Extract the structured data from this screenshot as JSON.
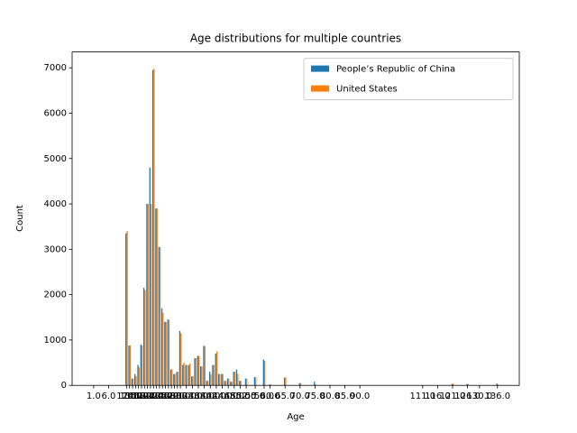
{
  "chart_data": {
    "type": "bar",
    "title": "Age distributions for multiple countries",
    "xlabel": "Age",
    "ylabel": "Count",
    "x": [
      12,
      13,
      14,
      15,
      16,
      17,
      18,
      19,
      20,
      21,
      22,
      23,
      24,
      25,
      26,
      27,
      28,
      29,
      30,
      31,
      32,
      33,
      34,
      35,
      36,
      37,
      38,
      39,
      40,
      41,
      42,
      43,
      44,
      45,
      46,
      47,
      48,
      49,
      50,
      52,
      55,
      58,
      60,
      65,
      70,
      75,
      80,
      90,
      111,
      116,
      121,
      126,
      130,
      136
    ],
    "series": [
      {
        "name": "People’s Republic of China",
        "color": "#1f77b4",
        "values": [
          3350,
          880,
          150,
          250,
          450,
          900,
          2150,
          4000,
          4800,
          6950,
          3900,
          3050,
          1700,
          1400,
          1450,
          350,
          250,
          300,
          1200,
          450,
          450,
          450,
          200,
          600,
          650,
          420,
          870,
          100,
          300,
          450,
          700,
          250,
          250,
          100,
          150,
          80,
          300,
          350,
          100,
          150,
          180,
          570,
          20,
          170,
          50,
          80,
          10,
          5,
          0,
          0,
          30,
          30,
          0,
          40
        ]
      },
      {
        "name": "United States",
        "color": "#ff7f0e",
        "values": [
          3400,
          880,
          150,
          200,
          400,
          880,
          2100,
          4000,
          4000,
          6980,
          3900,
          3050,
          1600,
          1400,
          1450,
          350,
          250,
          300,
          1150,
          500,
          450,
          480,
          200,
          600,
          650,
          420,
          870,
          100,
          250,
          450,
          750,
          250,
          250,
          100,
          150,
          80,
          300,
          250,
          100,
          150,
          180,
          540,
          20,
          180,
          50,
          20,
          10,
          5,
          0,
          0,
          40,
          30,
          0,
          20
        ]
      }
    ],
    "xlim": [
      -6.2,
      143.3
    ],
    "xticks": [
      {
        "value": 1,
        "label": "1.0"
      },
      {
        "value": 6,
        "label": "6.0"
      },
      {
        "value": 12,
        "label": "12.0"
      },
      {
        "value": 13,
        "label": "13.0"
      },
      {
        "value": 14,
        "label": "14.0"
      },
      {
        "value": 15,
        "label": "15.0"
      },
      {
        "value": 16,
        "label": "16.0"
      },
      {
        "value": 17,
        "label": "17.0"
      },
      {
        "value": 18,
        "label": "18.0"
      },
      {
        "value": 19,
        "label": "19.0"
      },
      {
        "value": 20,
        "label": "20.0"
      },
      {
        "value": 21,
        "label": "21.0"
      },
      {
        "value": 22,
        "label": "22.0"
      },
      {
        "value": 23,
        "label": "23.0"
      },
      {
        "value": 24,
        "label": "24.0"
      },
      {
        "value": 25,
        "label": "25.0"
      },
      {
        "value": 26,
        "label": "26.0"
      },
      {
        "value": 27,
        "label": "27.0"
      },
      {
        "value": 28,
        "label": "28.0"
      },
      {
        "value": 29,
        "label": "29.0"
      },
      {
        "value": 30,
        "label": "30.0"
      },
      {
        "value": 32,
        "label": "32.0"
      },
      {
        "value": 34,
        "label": "34.0"
      },
      {
        "value": 36,
        "label": "36.0"
      },
      {
        "value": 38,
        "label": "38.0"
      },
      {
        "value": 40,
        "label": "40.0"
      },
      {
        "value": 42,
        "label": "42.0"
      },
      {
        "value": 44,
        "label": "44.0"
      },
      {
        "value": 46,
        "label": "46.0"
      },
      {
        "value": 48,
        "label": "48.0"
      },
      {
        "value": 50,
        "label": "50.0"
      },
      {
        "value": 52,
        "label": "52.0"
      },
      {
        "value": 55,
        "label": "55.0"
      },
      {
        "value": 58,
        "label": "58.0"
      },
      {
        "value": 60,
        "label": "60.0"
      },
      {
        "value": 65,
        "label": "65.0"
      },
      {
        "value": 70,
        "label": "70.0"
      },
      {
        "value": 75,
        "label": "75.0"
      },
      {
        "value": 80,
        "label": "80.0"
      },
      {
        "value": 85,
        "label": "85.0"
      },
      {
        "value": 90,
        "label": "90.0"
      },
      {
        "value": 111,
        "label": "111.0"
      },
      {
        "value": 116,
        "label": "116.0"
      },
      {
        "value": 121,
        "label": "121.0"
      },
      {
        "value": 126,
        "label": "126.0"
      },
      {
        "value": 130,
        "label": "130.0"
      },
      {
        "value": 136,
        "label": "136.0"
      }
    ],
    "ylim": [
      0,
      7350
    ],
    "yticks": [
      0,
      1000,
      2000,
      3000,
      4000,
      5000,
      6000,
      7000
    ],
    "legend": "upper right"
  }
}
